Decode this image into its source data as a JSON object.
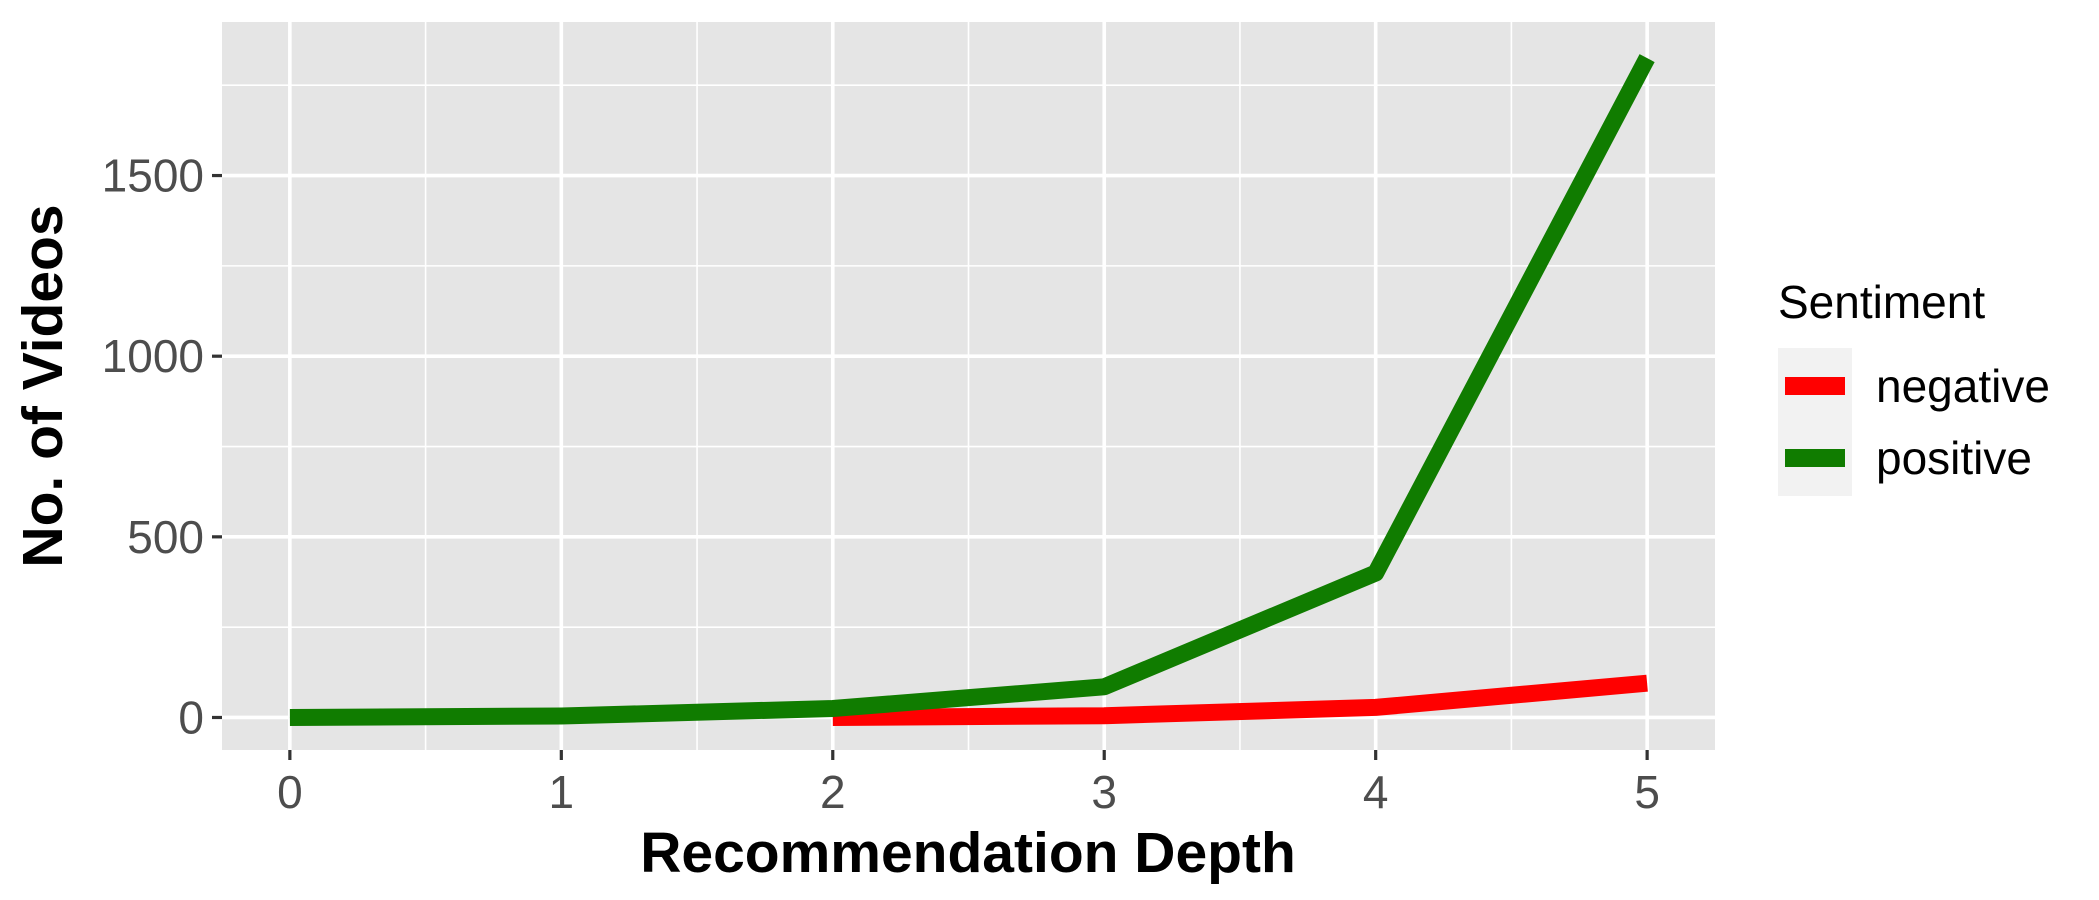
{
  "chart_data": {
    "type": "line",
    "title": "",
    "xlabel": "Recommendation Depth",
    "ylabel": "No. of Videos",
    "x": [
      0,
      1,
      2,
      3,
      4,
      5
    ],
    "xlim": [
      -0.25,
      5.25
    ],
    "ylim": [
      -90,
      1925
    ],
    "x_ticks": [
      0,
      1,
      2,
      3,
      4,
      5
    ],
    "x_tick_labels": [
      "0",
      "1",
      "2",
      "3",
      "4",
      "5"
    ],
    "y_ticks": [
      0,
      500,
      1000,
      1500
    ],
    "y_tick_labels": [
      "0",
      "500",
      "1000",
      "1500"
    ],
    "grid": true,
    "legend": {
      "title": "Sentiment",
      "placement": "right"
    },
    "series": [
      {
        "name": "negative",
        "color": "#ff0000",
        "points": [
          [
            2,
            0
          ],
          [
            3,
            5
          ],
          [
            4,
            28
          ],
          [
            5,
            95
          ]
        ]
      },
      {
        "name": "positive",
        "color": "#107c00",
        "points": [
          [
            0,
            0
          ],
          [
            1,
            4
          ],
          [
            2,
            25
          ],
          [
            3,
            85
          ],
          [
            4,
            400
          ],
          [
            5,
            1825
          ]
        ]
      }
    ]
  }
}
